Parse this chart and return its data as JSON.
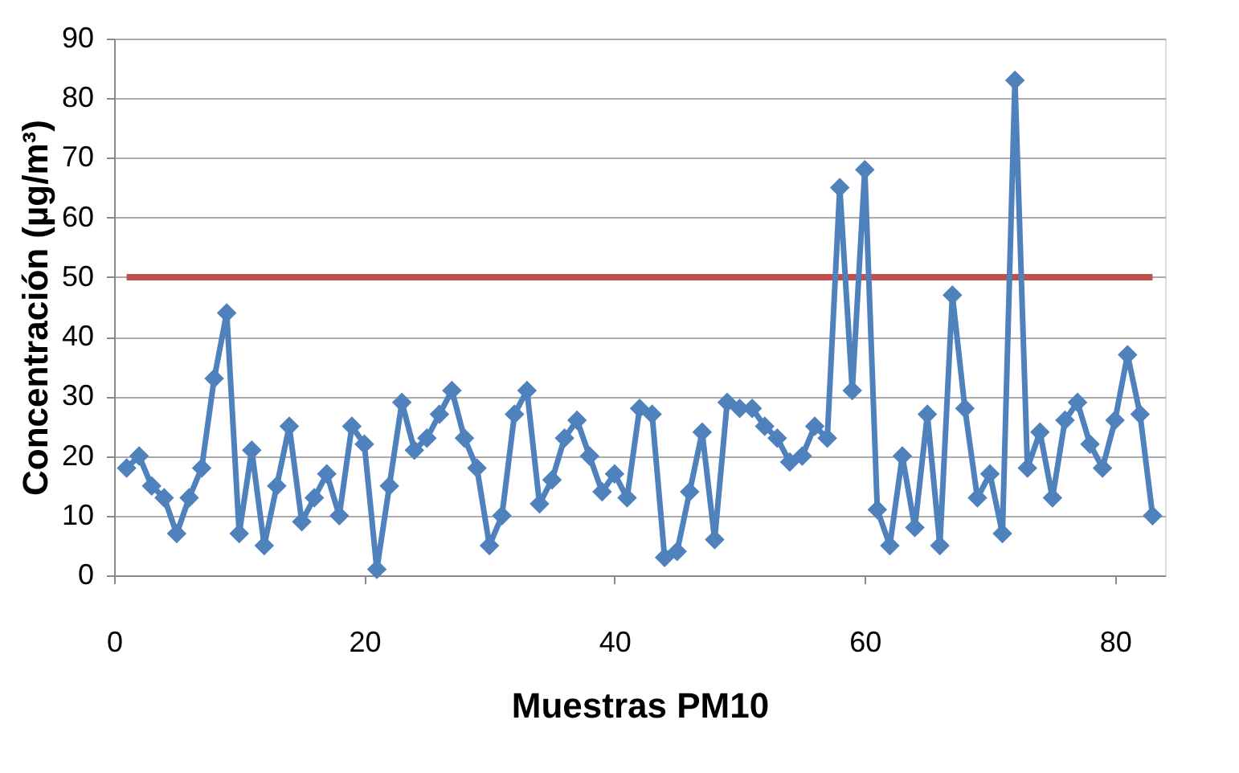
{
  "chart_data": {
    "type": "line",
    "xlabel": "Muestras PM10",
    "ylabel": "Concentración (µg/m³)",
    "x": [
      1,
      2,
      3,
      4,
      5,
      6,
      7,
      8,
      9,
      10,
      11,
      12,
      13,
      14,
      15,
      16,
      17,
      18,
      19,
      20,
      21,
      22,
      23,
      24,
      25,
      26,
      27,
      28,
      29,
      30,
      31,
      32,
      33,
      34,
      35,
      36,
      37,
      38,
      39,
      40,
      41,
      42,
      43,
      44,
      45,
      46,
      47,
      48,
      49,
      50,
      51,
      52,
      53,
      54,
      55,
      56,
      57,
      58,
      59,
      60,
      61,
      62,
      63,
      64,
      65,
      66,
      67,
      68,
      69,
      70,
      71,
      72,
      73,
      74,
      75,
      76,
      77,
      78,
      79,
      80,
      81,
      82,
      83
    ],
    "series": [
      {
        "color": "#4f81bd",
        "values": [
          18,
          20,
          15,
          13,
          7,
          13,
          18,
          33,
          44,
          7,
          21,
          5,
          15,
          25,
          9,
          13,
          17,
          10,
          25,
          22,
          1,
          15,
          29,
          21,
          23,
          27,
          31,
          23,
          18,
          5,
          10,
          27,
          31,
          12,
          16,
          23,
          26,
          20,
          14,
          17,
          13,
          28,
          27,
          3,
          4,
          14,
          24,
          6,
          29,
          28,
          28,
          25,
          23,
          19,
          20,
          25,
          23,
          65,
          31,
          68,
          11,
          5,
          20,
          8,
          27,
          5,
          47,
          28,
          13,
          17,
          7,
          83,
          18,
          24,
          13,
          26,
          29,
          22,
          18,
          26,
          37,
          27,
          10
        ]
      }
    ],
    "ref_lines": [
      {
        "axis": "y",
        "value": 50,
        "color": "#c0504d"
      }
    ],
    "xlim": [
      0,
      84
    ],
    "xticks": [
      0,
      20,
      40,
      60,
      80
    ],
    "ylim": [
      0,
      90
    ],
    "yticks": [
      0,
      10,
      20,
      30,
      40,
      50,
      60,
      70,
      80,
      90
    ],
    "grid": "y",
    "marker": "diamond",
    "line_style": "solid",
    "legend": false
  }
}
